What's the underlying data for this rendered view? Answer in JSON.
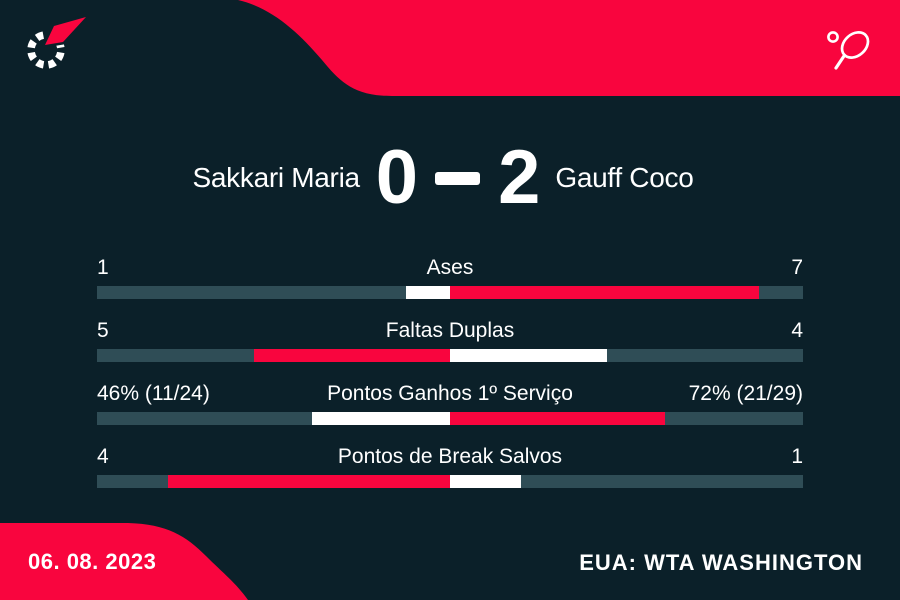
{
  "theme": {
    "background": "#0b2029",
    "accent_red": "#f9053e",
    "bar_track_teal": "#2f4d56",
    "text_white": "#ffffff"
  },
  "branding": {
    "logo_icon": "flashscore-speedometer-logo",
    "sport_icon": "tennis-racket-and-ball"
  },
  "scoreboard": {
    "player1_name": "Sakkari Maria",
    "player1_sets": "0",
    "separator": "-",
    "player2_sets": "2",
    "player2_name": "Gauff Coco"
  },
  "stats": [
    {
      "label": "Ases",
      "left_display": "1",
      "right_display": "7",
      "left_value": 1,
      "right_value": 7
    },
    {
      "label": "Faltas Duplas",
      "left_display": "5",
      "right_display": "4",
      "left_value": 5,
      "right_value": 4
    },
    {
      "label": "Pontos Ganhos 1º Serviço",
      "left_display": "46% (11/24)",
      "right_display": "72% (21/29)",
      "left_value": 46,
      "right_value": 72
    },
    {
      "label": "Pontos de Break Salvos",
      "left_display": "4",
      "right_display": "1",
      "left_value": 4,
      "right_value": 1
    }
  ],
  "footer": {
    "date": "06. 08. 2023",
    "tournament": "EUA: WTA WASHINGTON"
  },
  "chart_data": {
    "type": "bar",
    "orientation": "horizontal-diverging-from-center",
    "title": "Sakkari Maria 0 - 2 Gauff Coco",
    "categories": [
      "Ases",
      "Faltas Duplas",
      "Pontos Ganhos 1º Serviço",
      "Pontos de Break Salvos"
    ],
    "series": [
      {
        "name": "Sakkari Maria",
        "values": [
          1,
          5,
          46,
          4
        ],
        "value_labels": [
          "1",
          "5",
          "46% (11/24)",
          "4"
        ]
      },
      {
        "name": "Gauff Coco",
        "values": [
          7,
          4,
          72,
          1
        ],
        "value_labels": [
          "7",
          "4",
          "72% (21/29)",
          "1"
        ]
      }
    ],
    "encoding": "segment length = value / (value1 + value2) × half bar width, extending outward from center; higher value colored red, lower value white, remainder teal track",
    "legend_position": "none",
    "grid": false
  }
}
